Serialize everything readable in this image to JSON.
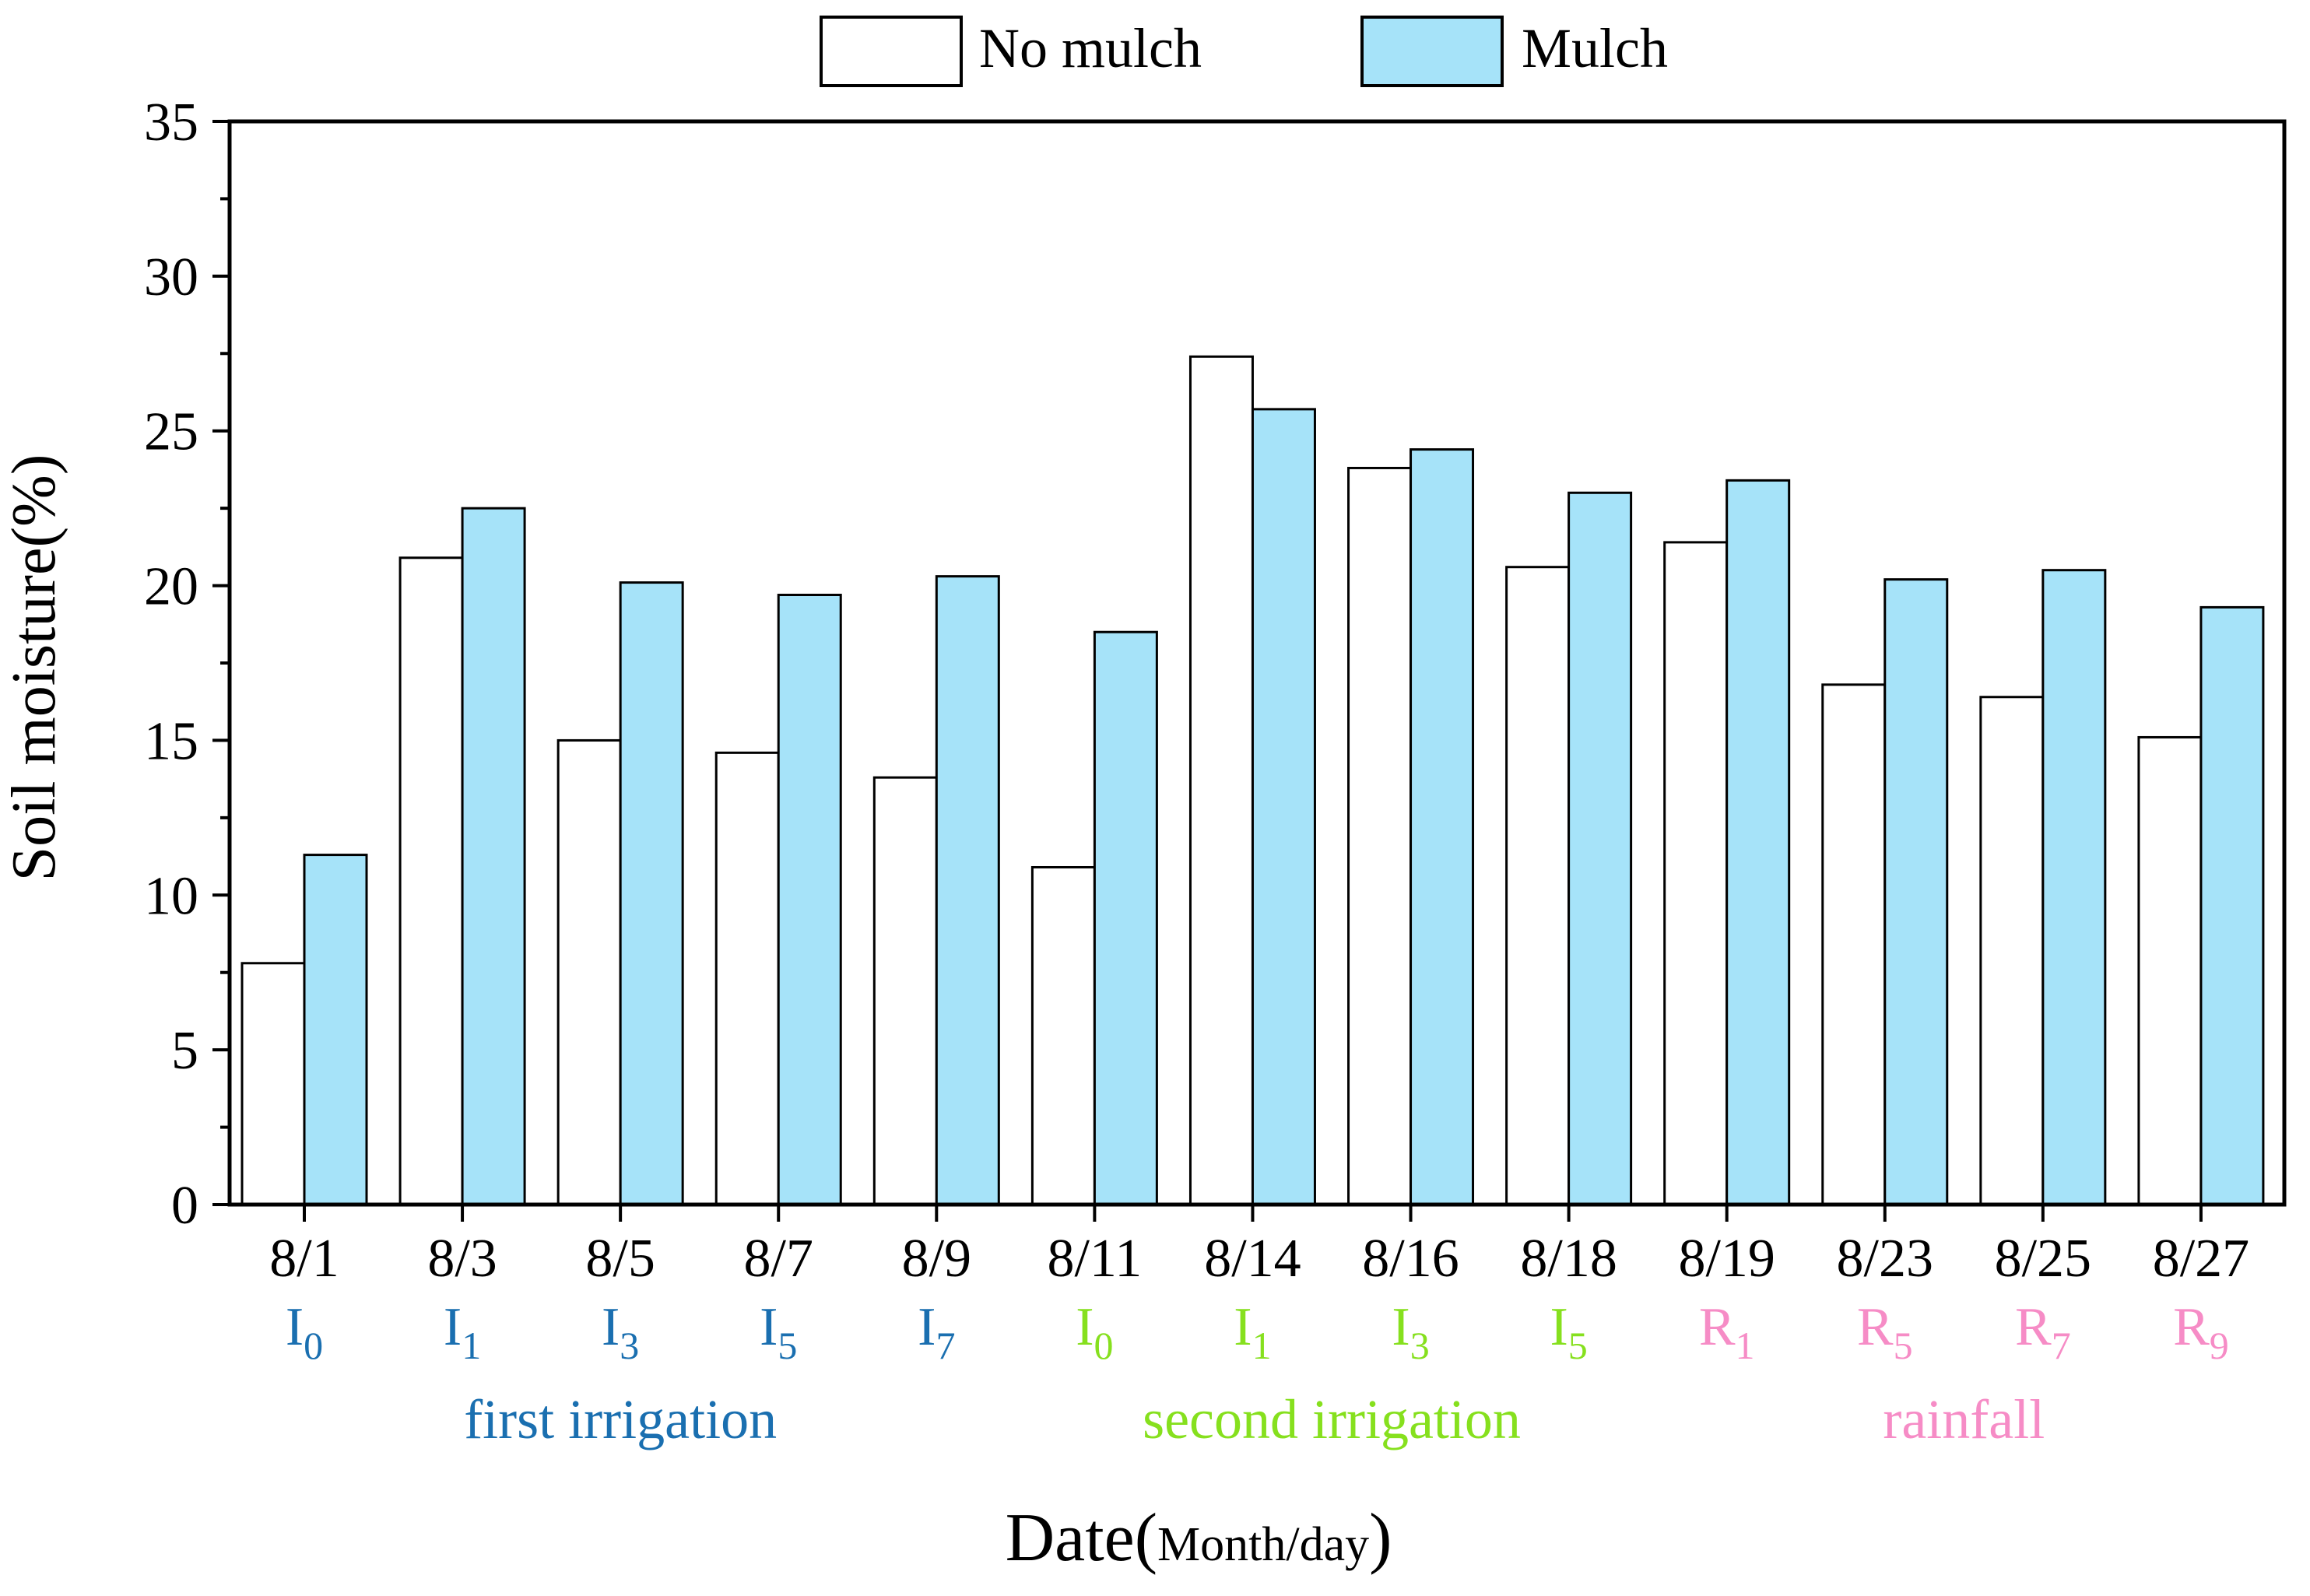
{
  "chart_data": {
    "type": "bar",
    "title": "",
    "ylabel": "Soil  moisture(%)",
    "xlabel_main": "Date(",
    "xlabel_sub": "Month/day",
    "xlabel_close": ")",
    "ylim": [
      0,
      35
    ],
    "yticks": [
      0,
      5,
      10,
      15,
      20,
      25,
      30,
      35
    ],
    "ytick_labels": [
      "0",
      "5",
      "10",
      "15",
      "20",
      "25",
      "30",
      "35"
    ],
    "legend_position": "top-center",
    "categories": [
      "8/1",
      "8/3",
      "8/5",
      "8/7",
      "8/9",
      "8/11",
      "8/14",
      "8/16",
      "8/18",
      "8/19",
      "8/23",
      "8/25",
      "8/27"
    ],
    "series": [
      {
        "name": "No mulch",
        "color": "#ffffff",
        "values": [
          7.8,
          20.9,
          15.0,
          14.6,
          13.8,
          10.9,
          27.4,
          23.8,
          20.6,
          21.4,
          16.8,
          16.4,
          15.1
        ]
      },
      {
        "name": "Mulch",
        "color": "#a6e3f9",
        "values": [
          11.3,
          22.5,
          20.1,
          19.7,
          20.3,
          18.5,
          25.7,
          24.4,
          23.0,
          23.4,
          20.2,
          20.5,
          19.3
        ]
      }
    ],
    "event_labels": [
      {
        "letter": "I",
        "sub": "0",
        "group": 0
      },
      {
        "letter": "I",
        "sub": "1",
        "group": 0
      },
      {
        "letter": "I",
        "sub": "3",
        "group": 0
      },
      {
        "letter": "I",
        "sub": "5",
        "group": 0
      },
      {
        "letter": "I",
        "sub": "7",
        "group": 0
      },
      {
        "letter": "I",
        "sub": "0",
        "group": 1
      },
      {
        "letter": "I",
        "sub": "1",
        "group": 1
      },
      {
        "letter": "I",
        "sub": "3",
        "group": 1
      },
      {
        "letter": "I",
        "sub": "5",
        "group": 1
      },
      {
        "letter": "R",
        "sub": "1",
        "group": 2
      },
      {
        "letter": "R",
        "sub": "5",
        "group": 2
      },
      {
        "letter": "R",
        "sub": "7",
        "group": 2
      },
      {
        "letter": "R",
        "sub": "9",
        "group": 2
      }
    ],
    "groups": [
      {
        "label": "first irrigation",
        "color": "#1a6fb0",
        "start": 0,
        "end": 4
      },
      {
        "label": "second irrigation",
        "color": "#86e01e",
        "start": 5,
        "end": 8
      },
      {
        "label": "rainfall",
        "color": "#f68cc6",
        "start": 9,
        "end": 12
      }
    ]
  }
}
